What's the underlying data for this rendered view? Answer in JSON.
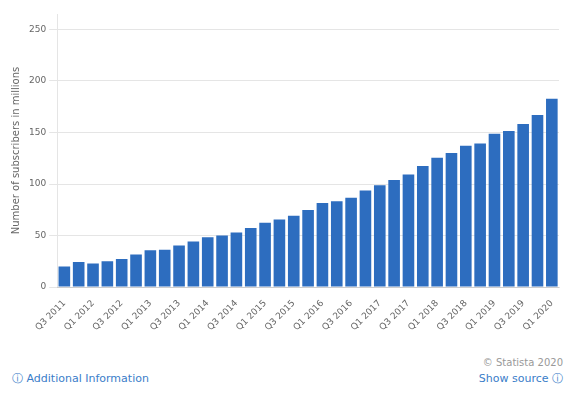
{
  "chart_data": {
    "type": "bar",
    "y_label": "Number of subscribers in millions",
    "categories": [
      "Q3 2011",
      null,
      "Q1 2012",
      null,
      "Q3 2012",
      null,
      "Q1 2013",
      null,
      "Q3 2013",
      null,
      "Q1 2014",
      null,
      "Q3 2014",
      null,
      "Q1 2015",
      null,
      "Q3 2015",
      null,
      "Q1 2016",
      null,
      "Q3 2016",
      null,
      "Q1 2017",
      null,
      "Q3 2017",
      null,
      "Q1 2018",
      null,
      "Q3 2018",
      null,
      "Q1 2019",
      null,
      "Q3 2019",
      null,
      "Q1 2020"
    ],
    "values": [
      20.01,
      24.4,
      22.84,
      25.1,
      27.15,
      31.66,
      35.67,
      36.27,
      40.43,
      44.35,
      48.35,
      50.05,
      53.06,
      57.39,
      62.33,
      65.63,
      69.17,
      74.76,
      81.49,
      83.18,
      86.74,
      93.8,
      98.75,
      103.95,
      109.25,
      117.58,
      125.43,
      130.13,
      137.1,
      139.26,
      148.86,
      151.56,
      158.33,
      167.09,
      182.86
    ],
    "color": "#2d6dbf",
    "ylim": [
      0,
      265
    ],
    "yticks": [
      0,
      50,
      100,
      150,
      200,
      250
    ],
    "grid": true,
    "annotations": [
      "ⓘ Additional Information",
      "Show source ⓘ",
      "© Statista 2020"
    ]
  }
}
